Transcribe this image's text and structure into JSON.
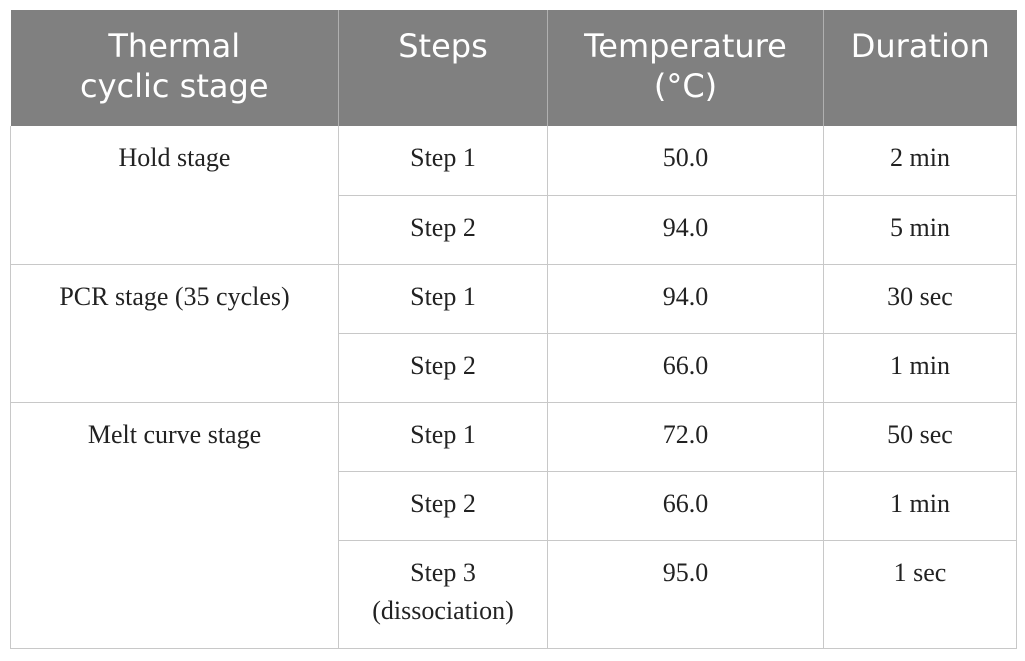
{
  "table": {
    "headers": {
      "stage_line1": "Thermal",
      "stage_line2": "cyclic stage",
      "steps": "Steps",
      "temp_line1": "Temperature",
      "temp_line2": "(°C)",
      "duration": "Duration"
    },
    "groups": [
      {
        "stage": "Hold stage",
        "rows": [
          {
            "step": "Step 1",
            "temperature": "50.0",
            "duration": "2 min"
          },
          {
            "step": "Step 2",
            "temperature": "94.0",
            "duration": "5 min"
          }
        ]
      },
      {
        "stage": "PCR stage (35 cycles)",
        "rows": [
          {
            "step": "Step 1",
            "temperature": "94.0",
            "duration": "30 sec"
          },
          {
            "step": "Step 2",
            "temperature": "66.0",
            "duration": "1 min"
          }
        ]
      },
      {
        "stage": "Melt curve stage",
        "rows": [
          {
            "step": "Step 1",
            "temperature": "72.0",
            "duration": "50 sec"
          },
          {
            "step": "Step 2",
            "temperature": "66.0",
            "duration": "1 min"
          },
          {
            "step": "Step 3",
            "step_note": "(dissociation)",
            "temperature": "95.0",
            "duration": "1 sec"
          }
        ]
      }
    ]
  }
}
